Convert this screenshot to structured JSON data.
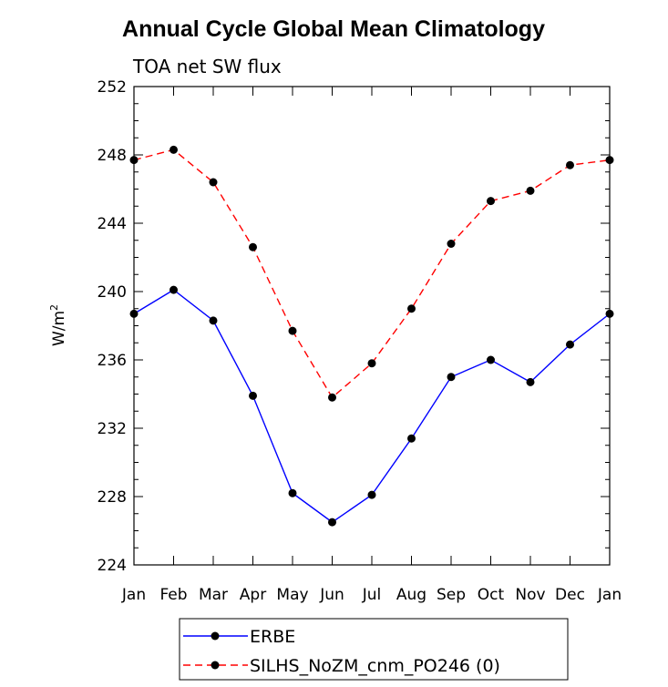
{
  "chart_data": {
    "type": "line",
    "title": "Annual Cycle Global Mean Climatology",
    "subtitle": "TOA net SW flux",
    "xlabel": "",
    "ylabel": "W/m",
    "ylabel_superscript": "2",
    "categories": [
      "Jan",
      "Feb",
      "Mar",
      "Apr",
      "May",
      "Jun",
      "Jul",
      "Aug",
      "Sep",
      "Oct",
      "Nov",
      "Dec",
      "Jan"
    ],
    "ylim": [
      224,
      252
    ],
    "yticks": [
      "224",
      "228",
      "232",
      "236",
      "240",
      "244",
      "248",
      "252"
    ],
    "series": [
      {
        "name": "ERBE",
        "color": "#0000ff",
        "dash": "solid",
        "values": [
          238.7,
          240.1,
          238.3,
          233.9,
          228.2,
          226.5,
          228.1,
          231.4,
          235.0,
          236.0,
          234.7,
          236.9,
          238.7
        ]
      },
      {
        "name": "SILHS_NoZM_cnm_PO246 (0)",
        "color": "#ff0000",
        "dash": "dashed",
        "values": [
          247.7,
          248.3,
          246.4,
          242.6,
          237.7,
          233.8,
          235.8,
          239.0,
          242.8,
          245.3,
          245.9,
          247.4,
          247.7
        ]
      }
    ],
    "grid": false,
    "legend_position": "bottom"
  }
}
